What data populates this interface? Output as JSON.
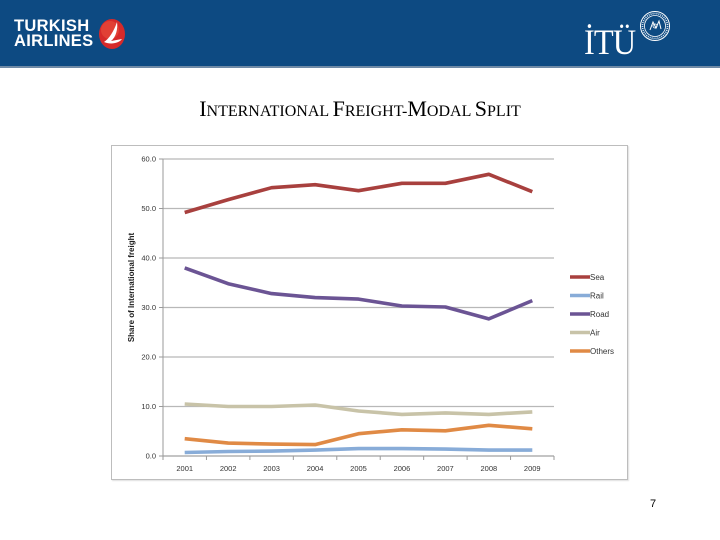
{
  "header": {
    "left_logo": {
      "line1": "TURKISH",
      "line2": "AIRLINES",
      "icon": "turkish-airlines-crane-emblem"
    },
    "right_logo": {
      "text": "İTÜ",
      "icon": "itu-seal"
    },
    "colors": {
      "bar": "#0d4a82",
      "logo_red": "#d62a2a"
    }
  },
  "slide": {
    "title_parts": [
      {
        "cap": "I",
        "rest": "NTERNATIONAL "
      },
      {
        "cap": "F",
        "rest": "REIGHT-"
      },
      {
        "cap": "M",
        "rest": "ODAL "
      },
      {
        "cap": "S",
        "rest": "PLIT"
      }
    ],
    "page_number": "7"
  },
  "chart_data": {
    "type": "line",
    "title": "International Freight-Modal Split",
    "xlabel": "",
    "ylabel": "Share of International freight",
    "x": [
      "2001",
      "2002",
      "2003",
      "2004",
      "2005",
      "2006",
      "2007",
      "2008",
      "2009"
    ],
    "ylim": [
      0,
      60
    ],
    "yticks": [
      "0.0",
      "10.0",
      "20.0",
      "30.0",
      "40.0",
      "50.0",
      "60.0"
    ],
    "ytick_values": [
      0,
      10,
      20,
      30,
      40,
      50,
      60
    ],
    "grid": true,
    "legend": "right",
    "series": [
      {
        "name": "Sea",
        "color": "#a8403e",
        "values": [
          49.2,
          51.8,
          54.2,
          54.8,
          53.6,
          55.1,
          55.1,
          56.9,
          53.4
        ]
      },
      {
        "name": "Rail",
        "color": "#88acd8",
        "values": [
          0.7,
          0.9,
          1.0,
          1.2,
          1.5,
          1.5,
          1.4,
          1.2,
          1.2
        ]
      },
      {
        "name": "Road",
        "color": "#6b5494",
        "values": [
          38.0,
          34.8,
          32.8,
          32.0,
          31.7,
          30.3,
          30.1,
          27.7,
          31.4
        ]
      },
      {
        "name": "Air",
        "color": "#c8c3a8",
        "values": [
          10.5,
          10.0,
          10.0,
          10.3,
          9.1,
          8.4,
          8.7,
          8.4,
          8.9
        ]
      },
      {
        "name": "Others",
        "color": "#e08a45",
        "values": [
          3.5,
          2.6,
          2.4,
          2.3,
          4.5,
          5.3,
          5.1,
          6.2,
          5.5
        ]
      }
    ]
  }
}
